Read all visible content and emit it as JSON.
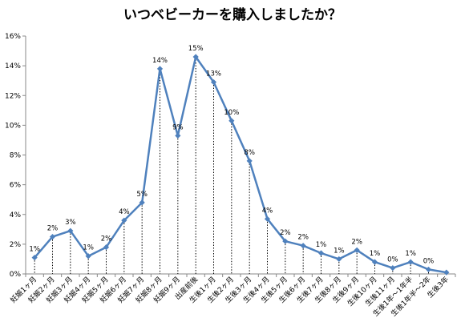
{
  "chart_data": {
    "type": "line",
    "title": "いつベビーカーを購入しましたか？",
    "xlabel": "",
    "ylabel": "",
    "ylim": [
      0,
      16
    ],
    "yticks": [
      "0%",
      "2%",
      "4%",
      "6%",
      "8%",
      "10%",
      "12%",
      "14%",
      "16%"
    ],
    "categories": [
      "妊娠1ヶ月",
      "妊娠2ヶ月",
      "妊娠3ヶ月",
      "妊娠4ヶ月",
      "妊娠5ヶ月",
      "妊娠6ヶ月",
      "妊娠7ヶ月",
      "妊娠8ヶ月",
      "妊娠9ヶ月",
      "出産前後",
      "生後1ヶ月",
      "生後2ヶ月",
      "生後3ヶ月",
      "生後4ヶ月",
      "生後5ヶ月",
      "生後6ヶ月",
      "生後7ヶ月",
      "生後8ヶ月",
      "生後9ヶ月",
      "生後10ヶ月",
      "生後11ヶ月",
      "生後1年～1年半",
      "生後1年半～2年",
      "生後3年"
    ],
    "values": [
      1.1,
      2.5,
      2.9,
      1.2,
      1.8,
      3.6,
      4.8,
      13.8,
      9.3,
      14.6,
      12.9,
      10.3,
      7.6,
      3.7,
      2.2,
      1.9,
      1.4,
      1.0,
      1.6,
      0.8,
      0.4,
      0.8,
      0.3,
      0.1
    ],
    "data_labels": [
      "1%",
      "2%",
      "3%",
      "1%",
      "2%",
      "4%",
      "5%",
      "14%",
      "9%",
      "15%",
      "13%",
      "10%",
      "8%",
      "4%",
      "2%",
      "2%",
      "1%",
      "1%",
      "2%",
      "1%",
      "0%",
      "1%",
      "0%",
      ""
    ],
    "grid": false,
    "drop_lines": true,
    "colors": {
      "line": "#4f81bd",
      "marker": "#4f81bd",
      "axis": "#888888",
      "drop_line": "#000000"
    }
  }
}
